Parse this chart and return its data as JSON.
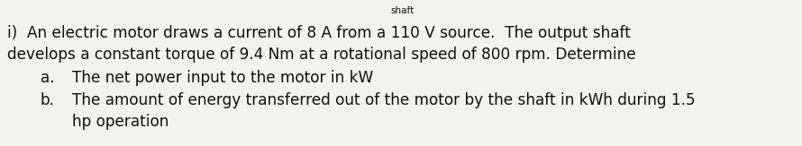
{
  "background_color": "#f2f2ee",
  "text_color": "#111111",
  "shaft_label": "shaft",
  "line1": "i)  An electric motor draws a current of 8 A from a 110 V source.  The output shaft",
  "line2": "develops a constant torque of 9.4 Nm at a rotational speed of 800 rpm. Determine",
  "label_a": "a.",
  "text_a": "The net power input to the motor in kW",
  "label_b": "b.",
  "text_b": "The amount of energy transferred out of the motor by the shaft in kWh during 1.5",
  "text_b2": "hp operation",
  "font_size": 12.2,
  "font_size_shaft": 7.5,
  "font_family": "DejaVu Sans"
}
